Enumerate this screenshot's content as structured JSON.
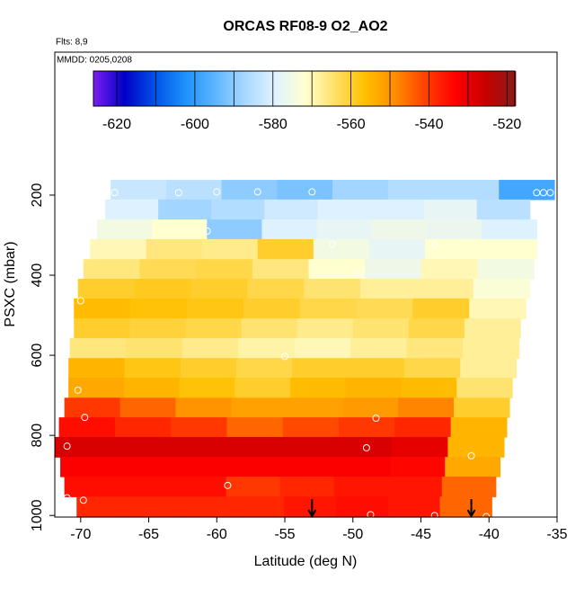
{
  "chart_data": {
    "type": "curtain",
    "title": "ORCAS RF08-9 O2_AO2",
    "annotations": [
      "Flts: 8,9",
      "MMDD: 0205,0208"
    ],
    "xlabel": "Latitude (deg N)",
    "ylabel": "PSXC (mbar)",
    "xlim": [
      -71.9,
      -35
    ],
    "xticks": [
      -70,
      -65,
      -60,
      -55,
      -50,
      -45,
      -40,
      -35
    ],
    "ylim": [
      -157,
      1004
    ],
    "y_inverted": true,
    "yticks": [
      200,
      400,
      600,
      800,
      1000
    ],
    "clim": [
      -626,
      -518
    ],
    "cticks": [
      -620,
      -600,
      -580,
      -560,
      -540,
      -520
    ],
    "colormap": [
      "#7a1cf0",
      "#0000c8",
      "#0050e6",
      "#1e90ff",
      "#5bb5ff",
      "#a8d8ff",
      "#e0f2ff",
      "#ffffd0",
      "#ffe066",
      "#ffc000",
      "#ff8c00",
      "#ff4000",
      "#ff0000",
      "#c80000",
      "#8b1a1a"
    ],
    "p_edges": [
      162,
      211,
      261,
      310,
      360,
      409,
      458,
      508,
      557,
      607,
      656,
      706,
      755,
      804,
      854,
      903,
      953,
      1004
    ],
    "rows": [
      {
        "lat": [
          -67.8,
          -35.2
        ],
        "values": [
          -583,
          -585,
          -590,
          -592,
          -588,
          -586,
          -586,
          -598
        ]
      },
      {
        "lat": [
          -68.2,
          -37
        ],
        "values": [
          -580,
          -588,
          -586,
          -582,
          -580,
          -580,
          -578,
          -585
        ]
      },
      {
        "lat": [
          -68.8,
          -36.5
        ],
        "values": [
          -575,
          -572,
          -590,
          -580,
          -578,
          -576,
          -577,
          -580
        ]
      },
      {
        "lat": [
          -69.3,
          -36.5
        ],
        "values": [
          -570,
          -566,
          -567,
          -560,
          -575,
          -578,
          -572,
          -572
        ]
      },
      {
        "lat": [
          -69.8,
          -36.7
        ],
        "values": [
          -566,
          -563,
          -562,
          -566,
          -572,
          -576,
          -570,
          -575
        ]
      },
      {
        "lat": [
          -70.2,
          -37
        ],
        "values": [
          -560,
          -559,
          -560,
          -562,
          -565,
          -568,
          -568,
          -573
        ]
      },
      {
        "lat": [
          -70.5,
          -37.3
        ],
        "values": [
          -556,
          -557,
          -558,
          -560,
          -562,
          -563,
          -560,
          -570
        ]
      },
      {
        "lat": [
          -70.5,
          -37.7
        ],
        "values": [
          -560,
          -561,
          -562,
          -565,
          -567,
          -565,
          -562,
          -568
        ]
      },
      {
        "lat": [
          -70.8,
          -37.8
        ],
        "values": [
          -566,
          -565,
          -567,
          -569,
          -570,
          -568,
          -566,
          -568
        ]
      },
      {
        "lat": [
          -70.9,
          -38
        ],
        "values": [
          -555,
          -558,
          -560,
          -562,
          -560,
          -560,
          -562,
          -568
        ]
      },
      {
        "lat": [
          -70.9,
          -38.3
        ],
        "values": [
          -553,
          -555,
          -557,
          -560,
          -556,
          -555,
          -556,
          -565
        ]
      },
      {
        "lat": [
          -71.2,
          -38.5
        ],
        "values": [
          -540,
          -545,
          -550,
          -552,
          -552,
          -551,
          -548,
          -560
        ]
      },
      {
        "lat": [
          -71.6,
          -38.7
        ],
        "values": [
          -535,
          -538,
          -540,
          -545,
          -542,
          -540,
          -538,
          -555
        ]
      },
      {
        "lat": [
          -71.9,
          -38.9
        ],
        "values": [
          -528,
          -528,
          -528,
          -528,
          -528,
          -528,
          -530,
          -555
        ]
      },
      {
        "lat": [
          -71.5,
          -39.2
        ],
        "values": [
          -533,
          -533,
          -533,
          -533,
          -533,
          -533,
          -534,
          -553
        ]
      },
      {
        "lat": [
          -71.2,
          -39.5
        ],
        "values": [
          -535,
          -535,
          -535,
          -540,
          -538,
          -536,
          -536,
          -545
        ]
      },
      {
        "lat": [
          -70.3,
          -39.8
        ],
        "values": [
          -538,
          -538,
          -538,
          -538,
          -536,
          -535,
          -536,
          -545
        ]
      }
    ],
    "points": {
      "x": [
        -67.5,
        -62.8,
        -60,
        -57,
        -53,
        -36.5,
        -36,
        -35.5,
        -60.7,
        -51.5,
        -44,
        -49.5,
        -70,
        -55,
        -70.2,
        -69.7,
        -48.3,
        -49,
        -71,
        -59.2,
        -41.3,
        -71,
        -69.8,
        -48.7,
        -44,
        -40.2
      ],
      "y": [
        194,
        194,
        192,
        192,
        192,
        194,
        194,
        194,
        290,
        323,
        323,
        395,
        464,
        603,
        687,
        755,
        757,
        831,
        827,
        925,
        851,
        956,
        962,
        998,
        1000,
        1003
      ]
    },
    "arrows_x": [
      -53,
      -41.3
    ]
  }
}
